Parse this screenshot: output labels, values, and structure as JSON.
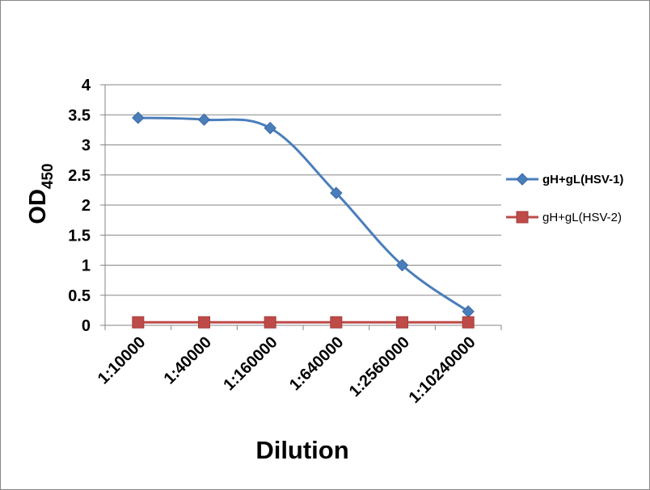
{
  "chart_data": {
    "type": "line",
    "categories": [
      "1:10000",
      "1:40000",
      "1:160000",
      "1:640000",
      "1:2560000",
      "1:10240000"
    ],
    "series": [
      {
        "name": "gH+gL(HSV-1)",
        "values": [
          3.45,
          3.42,
          3.28,
          2.2,
          1.0,
          0.23
        ],
        "color": "#4a7ebb",
        "marker": "diamond",
        "legend_bold": true
      },
      {
        "name": "gH+gL(HSV-2)",
        "values": [
          0.05,
          0.05,
          0.05,
          0.05,
          0.05,
          0.05
        ],
        "color": "#be4b48",
        "marker": "square",
        "legend_bold": false
      }
    ],
    "yticks": [
      "0",
      "0.5",
      "1",
      "1.5",
      "2",
      "2.5",
      "3",
      "3.5",
      "4"
    ],
    "ylim": [
      0,
      4
    ],
    "xlabel": "Dilution",
    "ylabel": "OD",
    "ylabel_subscript": "450",
    "grid": true,
    "legend_position": "right"
  }
}
